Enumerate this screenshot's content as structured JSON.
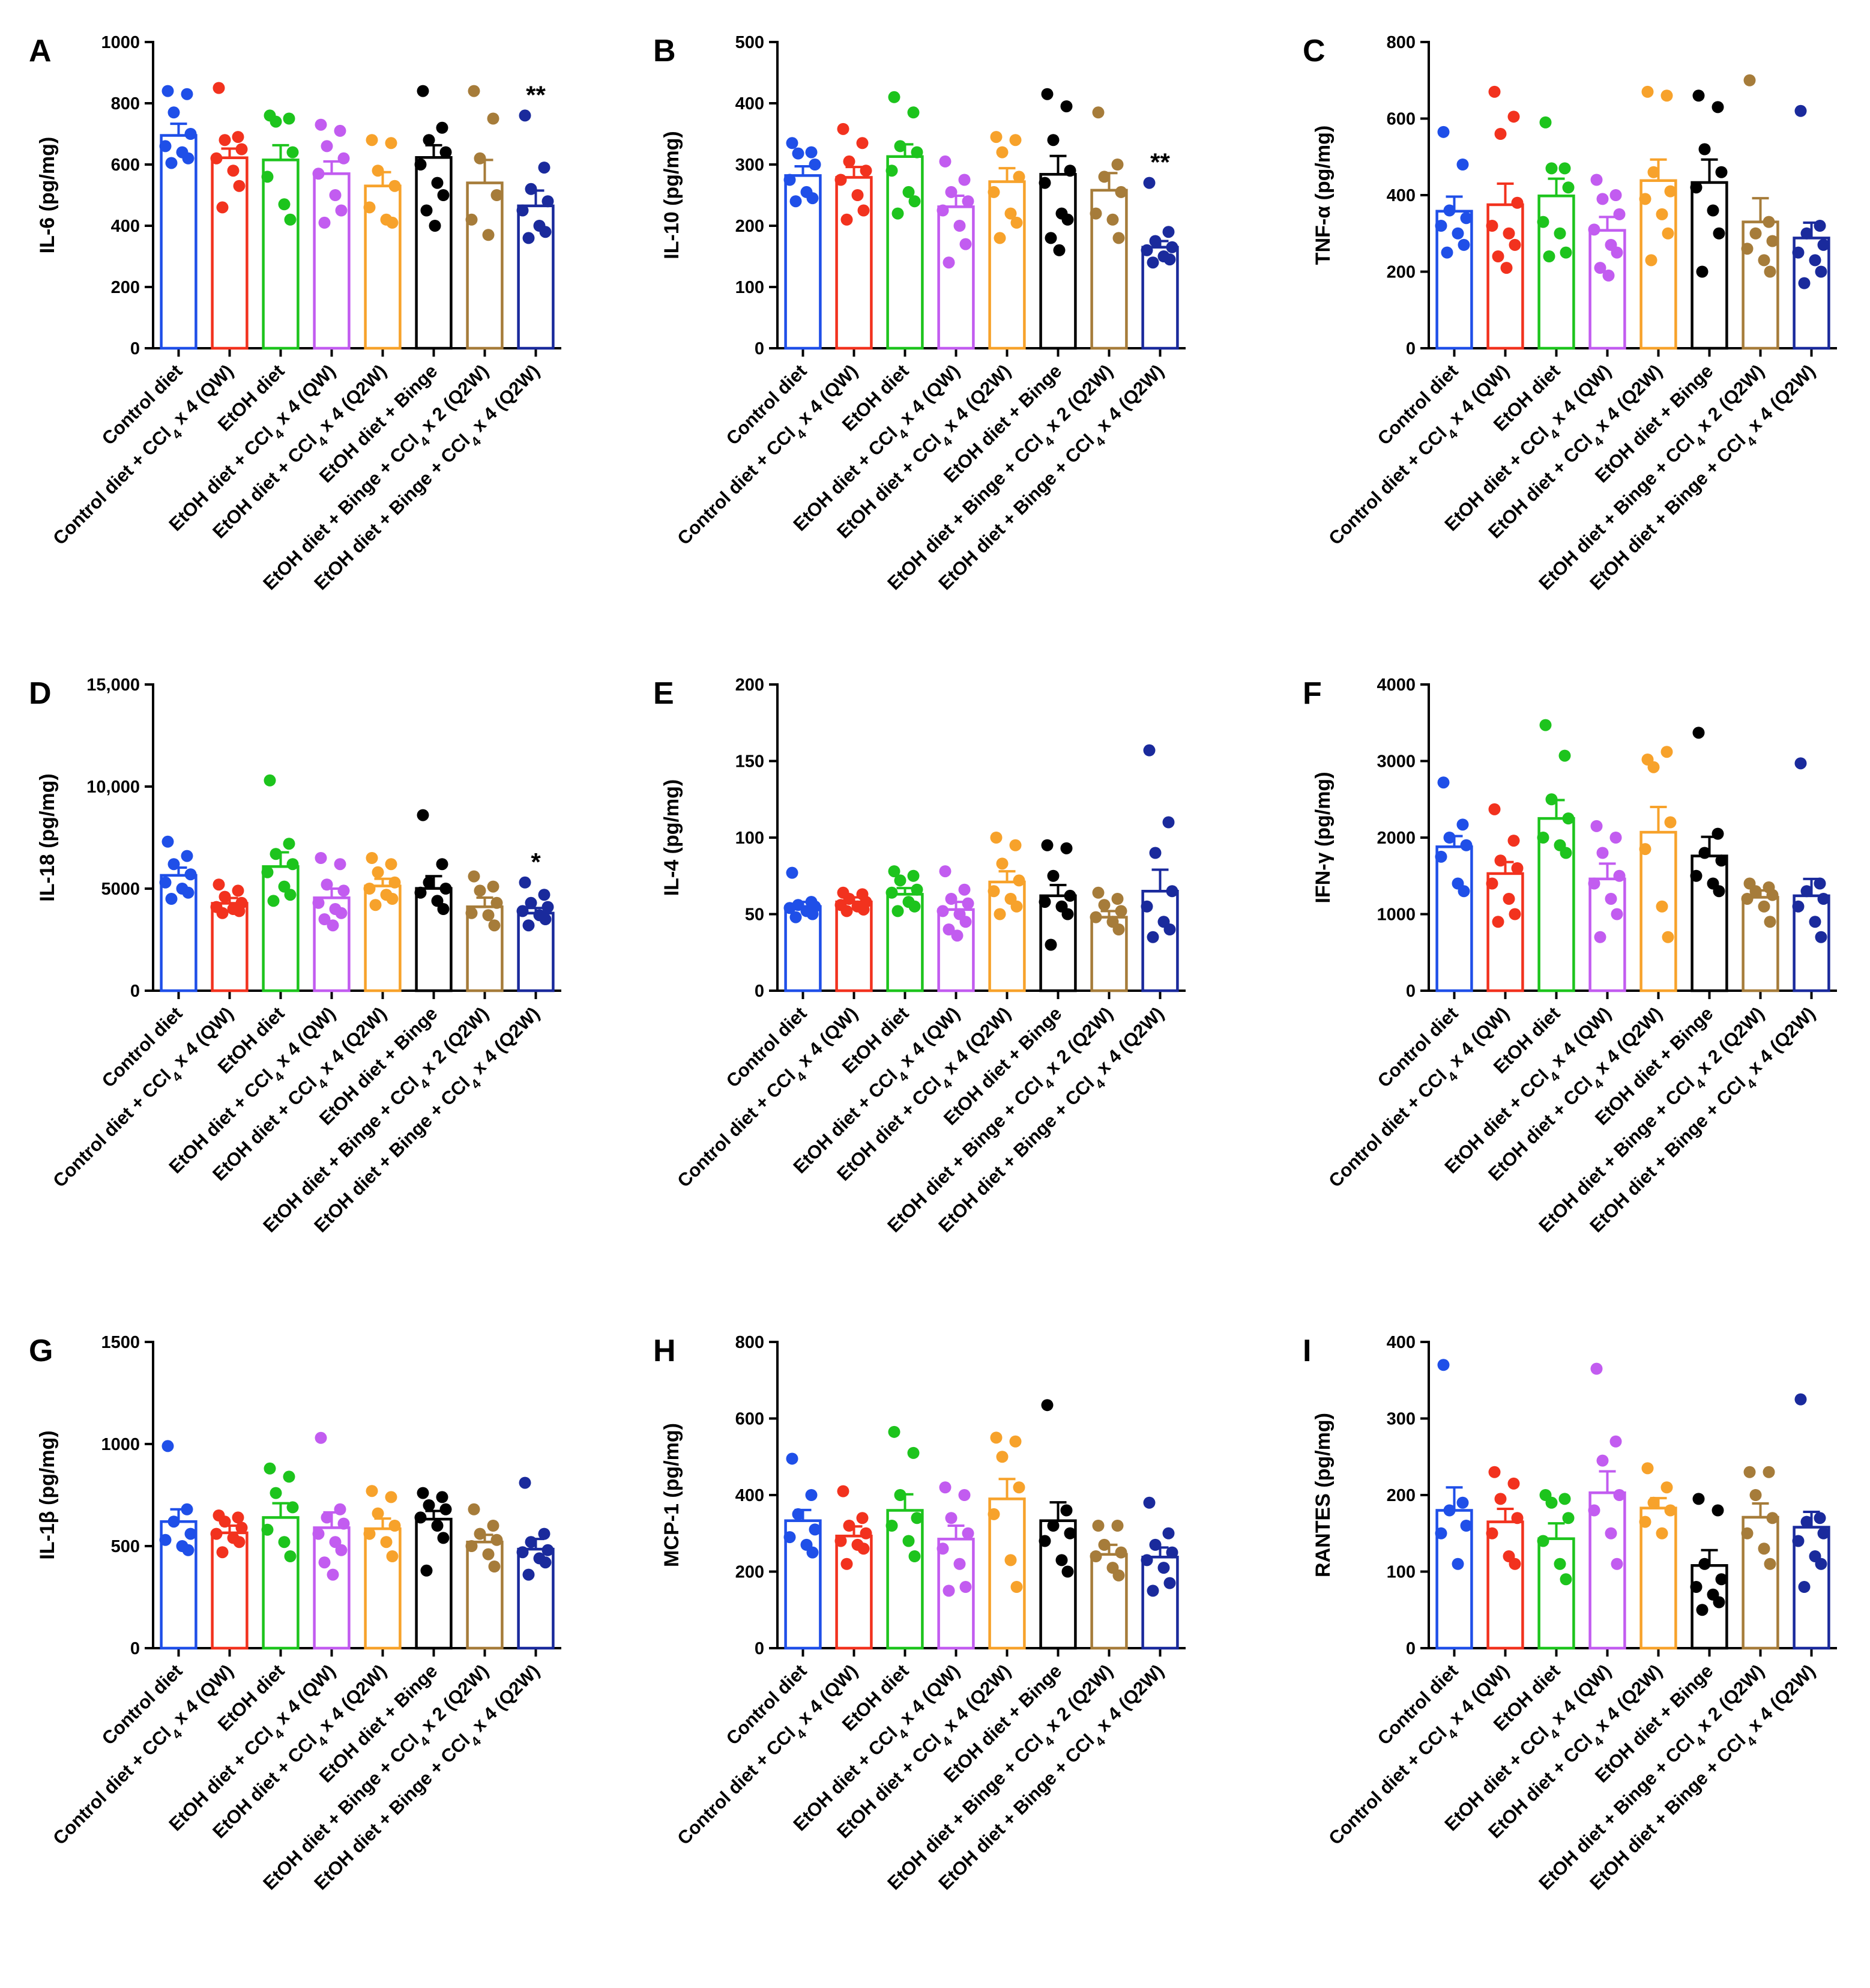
{
  "figure": {
    "categories": [
      {
        "text": "Control diet",
        "sub": null,
        "post": null
      },
      {
        "text": "Control diet + CCl",
        "sub": "4",
        "post": " x 4 (QW)"
      },
      {
        "text": "EtOH diet",
        "sub": null,
        "post": null
      },
      {
        "text": "EtOH diet + CCl",
        "sub": "4",
        "post": " x 4 (QW)"
      },
      {
        "text": "EtOH diet + CCl",
        "sub": "4",
        "post": " x 4 (Q2W)"
      },
      {
        "text": "EtOH diet + Binge",
        "sub": null,
        "post": null
      },
      {
        "text": "EtOH diet + Binge + CCl",
        "sub": "4",
        "post": " x 2 (Q2W)"
      },
      {
        "text": "EtOH diet + Binge + CCl",
        "sub": "4",
        "post": " x 4 (Q2W)"
      }
    ],
    "colors": [
      "#1f4fe8",
      "#f2321e",
      "#1dc41d",
      "#c25cf0",
      "#f7a22b",
      "#000000",
      "#a67c3a",
      "#1a2a9c"
    ]
  },
  "chart_data": [
    {
      "type": "bar",
      "panel": "A",
      "ylabel": "IL-6 (pg/mg)",
      "ylim": [
        0,
        1000
      ],
      "ticks": [
        0,
        200,
        400,
        600,
        800,
        1000
      ],
      "tick_labels": [
        "0",
        "200",
        "400",
        "600",
        "800",
        "1000"
      ],
      "means": [
        695,
        622,
        615,
        570,
        530,
        623,
        540,
        465
      ],
      "sem": [
        38,
        30,
        48,
        40,
        45,
        40,
        75,
        50
      ],
      "points": [
        [
          840,
          830,
          770,
          700,
          660,
          640,
          620,
          605
        ],
        [
          850,
          690,
          680,
          650,
          620,
          580,
          530,
          460
        ],
        [
          760,
          750,
          740,
          640,
          560,
          470,
          420
        ],
        [
          730,
          710,
          660,
          620,
          570,
          500,
          450,
          410
        ],
        [
          680,
          670,
          580,
          530,
          460,
          420,
          410
        ],
        [
          840,
          720,
          680,
          640,
          600,
          540,
          500,
          450,
          400
        ],
        [
          840,
          750,
          620,
          500,
          420,
          370
        ],
        [
          760,
          590,
          520,
          480,
          450,
          400,
          380,
          360
        ]
      ],
      "significance": [
        null,
        null,
        null,
        null,
        null,
        null,
        null,
        "**"
      ]
    },
    {
      "type": "bar",
      "panel": "B",
      "ylabel": "IL-10 (pg/mg)",
      "ylim": [
        0,
        500
      ],
      "ticks": [
        0,
        100,
        200,
        300,
        400,
        500
      ],
      "tick_labels": [
        "0",
        "100",
        "200",
        "300",
        "400",
        "500"
      ],
      "means": [
        282,
        279,
        313,
        231,
        272,
        284,
        258,
        165
      ],
      "sem": [
        15,
        17,
        20,
        18,
        22,
        30,
        28,
        10
      ],
      "points": [
        [
          335,
          320,
          318,
          300,
          275,
          255,
          245,
          240
        ],
        [
          358,
          335,
          305,
          290,
          275,
          250,
          225,
          210
        ],
        [
          410,
          385,
          330,
          320,
          290,
          255,
          240,
          220
        ],
        [
          305,
          275,
          255,
          240,
          225,
          200,
          170,
          140
        ],
        [
          345,
          340,
          320,
          280,
          255,
          220,
          205,
          180
        ],
        [
          415,
          395,
          340,
          290,
          270,
          220,
          210,
          180,
          160
        ],
        [
          385,
          300,
          280,
          255,
          220,
          210,
          180
        ],
        [
          270,
          190,
          175,
          165,
          160,
          150,
          145,
          140
        ]
      ],
      "significance": [
        null,
        null,
        null,
        null,
        null,
        null,
        null,
        "**"
      ]
    },
    {
      "type": "bar",
      "panel": "C",
      "ylabel": "TNF-α (pg/mg)",
      "ylim": [
        0,
        800
      ],
      "ticks": [
        0,
        200,
        400,
        600,
        800
      ],
      "tick_labels": [
        "0",
        "200",
        "400",
        "600",
        "800"
      ],
      "means": [
        358,
        375,
        398,
        308,
        438,
        433,
        330,
        288
      ],
      "sem": [
        38,
        55,
        45,
        35,
        55,
        60,
        62,
        40
      ],
      "points": [
        [
          565,
          480,
          360,
          340,
          320,
          300,
          270,
          250
        ],
        [
          670,
          605,
          560,
          380,
          320,
          300,
          270,
          240,
          210
        ],
        [
          590,
          470,
          470,
          420,
          330,
          300,
          250,
          240
        ],
        [
          440,
          400,
          390,
          350,
          310,
          270,
          250,
          210,
          190
        ],
        [
          670,
          660,
          460,
          410,
          390,
          350,
          300,
          230
        ],
        [
          660,
          630,
          520,
          460,
          420,
          360,
          300,
          200
        ],
        [
          700,
          330,
          300,
          280,
          260,
          230,
          200
        ],
        [
          620,
          320,
          300,
          270,
          250,
          230,
          200,
          170
        ]
      ],
      "significance": [
        null,
        null,
        null,
        null,
        null,
        null,
        null,
        null
      ]
    },
    {
      "type": "bar",
      "panel": "D",
      "ylabel": "IL-18 (pg/mg)",
      "ylim": [
        0,
        15000
      ],
      "ticks": [
        0,
        5000,
        10000,
        15000
      ],
      "tick_labels": [
        "0",
        "5000",
        "10,000",
        "15,000"
      ],
      "means": [
        5650,
        4280,
        6080,
        4550,
        5130,
        5010,
        4110,
        3800
      ],
      "sem": [
        380,
        260,
        700,
        450,
        350,
        600,
        450,
        250
      ],
      "points": [
        [
          7300,
          6600,
          6200,
          5700,
          5300,
          5000,
          4800,
          4500
        ],
        [
          5200,
          4900,
          4600,
          4300,
          4100,
          4000,
          3900,
          3800
        ],
        [
          10300,
          7200,
          6700,
          6200,
          5800,
          5100,
          4700,
          4400
        ],
        [
          6500,
          6200,
          5200,
          4900,
          4300,
          4000,
          3800,
          3500,
          3200
        ],
        [
          6500,
          6200,
          5800,
          5300,
          5000,
          4700,
          4500,
          4200
        ],
        [
          8600,
          6200,
          5300,
          5000,
          4800,
          4400,
          4000
        ],
        [
          5600,
          5100,
          4900,
          4300,
          3800,
          3700,
          3200
        ],
        [
          5300,
          4700,
          4300,
          4100,
          3900,
          3700,
          3500,
          3200
        ]
      ],
      "significance": [
        null,
        null,
        null,
        null,
        null,
        null,
        null,
        "*"
      ]
    },
    {
      "type": "bar",
      "panel": "E",
      "ylabel": "IL-4 (pg/mg)",
      "ylim": [
        0,
        200
      ],
      "ticks": [
        0,
        50,
        100,
        150,
        200
      ],
      "tick_labels": [
        "0",
        "50",
        "100",
        "150",
        "200"
      ],
      "means": [
        55,
        58,
        63,
        53,
        71,
        62,
        48,
        65
      ],
      "sem": [
        3,
        3,
        4,
        5,
        7,
        7,
        4,
        14
      ],
      "points": [
        [
          77,
          58,
          56,
          55,
          54,
          52,
          50,
          48
        ],
        [
          64,
          63,
          60,
          58,
          56,
          55,
          53,
          52
        ],
        [
          78,
          75,
          72,
          66,
          64,
          58,
          55,
          52
        ],
        [
          78,
          66,
          60,
          57,
          52,
          50,
          45,
          40,
          36
        ],
        [
          100,
          95,
          83,
          72,
          65,
          60,
          55,
          50
        ],
        [
          95,
          93,
          75,
          62,
          58,
          55,
          50,
          30
        ],
        [
          64,
          60,
          56,
          52,
          48,
          45,
          40
        ],
        [
          157,
          110,
          90,
          65,
          55,
          45,
          40,
          35
        ]
      ],
      "significance": [
        null,
        null,
        null,
        null,
        null,
        null,
        null,
        null
      ]
    },
    {
      "type": "bar",
      "panel": "F",
      "ylabel": "IFN-γ (pg/mg)",
      "ylim": [
        0,
        4000
      ],
      "ticks": [
        0,
        1000,
        2000,
        3000,
        4000
      ],
      "tick_labels": [
        "0",
        "1000",
        "2000",
        "3000",
        "4000"
      ],
      "means": [
        1880,
        1530,
        2250,
        1460,
        2070,
        1760,
        1220,
        1240
      ],
      "sem": [
        140,
        150,
        240,
        200,
        330,
        250,
        90,
        220
      ],
      "points": [
        [
          2720,
          2170,
          2000,
          1900,
          1750,
          1400,
          1300
        ],
        [
          2370,
          1960,
          1700,
          1600,
          1400,
          1200,
          1000,
          900
        ],
        [
          3470,
          3070,
          2500,
          2250,
          2000,
          1900,
          1800
        ],
        [
          2150,
          2000,
          1800,
          1500,
          1400,
          1200,
          1000,
          700
        ],
        [
          3020,
          3120,
          2920,
          2200,
          1850,
          1100,
          700
        ],
        [
          3370,
          2050,
          1800,
          1700,
          1500,
          1400,
          1300
        ],
        [
          1400,
          1350,
          1300,
          1250,
          1200,
          1100,
          900
        ],
        [
          2970,
          1400,
          1300,
          1200,
          1100,
          900,
          700
        ]
      ],
      "significance": [
        null,
        null,
        null,
        null,
        null,
        null,
        null,
        null
      ]
    },
    {
      "type": "bar",
      "panel": "G",
      "ylabel": "IL-1β (pg/mg)",
      "ylim": [
        0,
        1500
      ],
      "ticks": [
        0,
        500,
        1000,
        1500
      ],
      "tick_labels": [
        "0",
        "500",
        "1000",
        "1500"
      ],
      "means": [
        620,
        565,
        640,
        590,
        585,
        632,
        520,
        485
      ],
      "sem": [
        60,
        35,
        70,
        75,
        50,
        40,
        35,
        50
      ],
      "points": [
        [
          990,
          680,
          620,
          560,
          530,
          500,
          480
        ],
        [
          650,
          640,
          620,
          590,
          560,
          540,
          520,
          470
        ],
        [
          880,
          840,
          760,
          690,
          580,
          520,
          450
        ],
        [
          1030,
          680,
          640,
          610,
          560,
          520,
          480,
          420,
          360
        ],
        [
          770,
          740,
          660,
          600,
          560,
          520,
          450
        ],
        [
          760,
          740,
          700,
          680,
          640,
          600,
          540,
          380
        ],
        [
          680,
          600,
          560,
          530,
          500,
          460,
          400
        ],
        [
          810,
          560,
          520,
          480,
          470,
          440,
          420,
          360
        ]
      ],
      "significance": [
        null,
        null,
        null,
        null,
        null,
        null,
        null,
        null
      ]
    },
    {
      "type": "bar",
      "panel": "H",
      "ylabel": "MCP-1 (pg/mg)",
      "ylim": [
        0,
        800
      ],
      "ticks": [
        0,
        200,
        400,
        600,
        800
      ],
      "tick_labels": [
        "0",
        "200",
        "400",
        "600",
        "800"
      ],
      "means": [
        333,
        293,
        360,
        285,
        390,
        333,
        245,
        238
      ],
      "sem": [
        28,
        25,
        42,
        35,
        52,
        48,
        25,
        25
      ],
      "points": [
        [
          495,
          400,
          350,
          310,
          290,
          270,
          250
        ],
        [
          410,
          340,
          320,
          300,
          280,
          270,
          260,
          220
        ],
        [
          565,
          510,
          400,
          340,
          320,
          280,
          240
        ],
        [
          420,
          400,
          340,
          300,
          260,
          220,
          160,
          150
        ],
        [
          550,
          540,
          500,
          420,
          350,
          230,
          160
        ],
        [
          635,
          360,
          320,
          300,
          280,
          230,
          200
        ],
        [
          320,
          320,
          270,
          250,
          240,
          210,
          190
        ],
        [
          380,
          300,
          270,
          250,
          230,
          210,
          170,
          150
        ]
      ],
      "significance": [
        null,
        null,
        null,
        null,
        null,
        null,
        null,
        null
      ]
    },
    {
      "type": "bar",
      "panel": "I",
      "ylabel": "RANTES (pg/mg)",
      "ylim": [
        0,
        400
      ],
      "ticks": [
        0,
        100,
        200,
        300,
        400
      ],
      "tick_labels": [
        "0",
        "100",
        "200",
        "300",
        "400"
      ],
      "means": [
        180,
        165,
        143,
        203,
        183,
        108,
        171,
        158
      ],
      "sem": [
        30,
        17,
        20,
        28,
        13,
        20,
        18,
        20
      ],
      "points": [
        [
          370,
          190,
          180,
          160,
          150,
          110
        ],
        [
          230,
          215,
          195,
          170,
          150,
          120,
          110
        ],
        [
          200,
          195,
          190,
          170,
          140,
          110,
          90
        ],
        [
          365,
          270,
          245,
          200,
          180,
          150,
          110
        ],
        [
          235,
          210,
          190,
          180,
          165,
          150
        ],
        [
          195,
          180,
          110,
          90,
          80,
          70,
          60,
          50
        ],
        [
          230,
          230,
          200,
          170,
          150,
          130,
          110
        ],
        [
          325,
          170,
          165,
          150,
          140,
          120,
          110,
          80
        ]
      ],
      "significance": [
        null,
        null,
        null,
        null,
        null,
        null,
        null,
        null
      ]
    }
  ]
}
